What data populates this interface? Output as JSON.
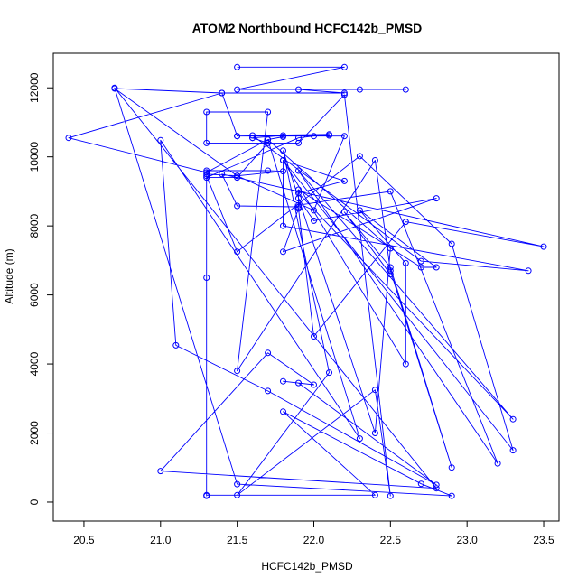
{
  "chart_data": {
    "type": "line",
    "title": "ATOM2 Northbound HCFC142b_PMSD",
    "xlabel": "HCFC142b_PMSD",
    "ylabel": "Altitude (m)",
    "xlim": [
      20.3,
      23.6
    ],
    "ylim": [
      -550,
      13000
    ],
    "x_ticks": [
      20.5,
      21.0,
      21.5,
      22.0,
      22.5,
      23.0,
      23.5
    ],
    "x_tick_labels": [
      "20.5",
      "21.0",
      "21.5",
      "22.0",
      "22.5",
      "23.0",
      "23.5"
    ],
    "y_ticks": [
      0,
      2000,
      4000,
      6000,
      8000,
      10000,
      12000
    ],
    "y_tick_labels": [
      "0",
      "2000",
      "4000",
      "6000",
      "8000",
      "10000",
      "12000"
    ],
    "grid": false,
    "colors": {
      "series": "#0000ff",
      "axis": "#000000",
      "background": "#ffffff"
    },
    "series": [
      {
        "x": [
          21.5,
          22.2,
          21.5,
          22.6,
          22.3,
          21.9,
          22.2,
          21.4,
          20.7,
          21.5,
          21.3,
          21.3,
          21.7,
          21.8,
          21.5,
          22.0,
          22.2,
          21.5,
          22.1,
          22.0,
          21.9,
          21.3,
          21.5,
          21.7,
          21.6,
          21.6,
          21.8,
          21.8,
          21.7,
          21.3,
          20.4,
          21.4,
          21.5,
          22.1,
          21.6,
          22.7,
          23.4,
          21.8,
          21.8,
          22.2,
          21.9,
          23.3,
          21.9,
          23.2,
          22.5,
          21.9,
          21.9,
          22.0,
          22.8,
          21.8,
          21.9,
          22.0,
          22.6,
          23.5,
          21.4,
          21.5,
          21.9,
          21.9,
          22.7,
          22.8,
          22.3,
          22.6,
          22.6,
          21.8,
          23.3,
          22.9,
          22.3,
          21.5,
          21.3,
          21.3,
          21.3,
          21.3,
          22.4,
          21.8,
          22.7,
          22.9,
          21.5,
          20.7,
          22.8,
          21.0,
          21.7,
          22.0,
          21.8,
          21.9,
          22.8,
          21.7,
          21.1,
          21.0,
          22.3,
          21.7,
          22.5,
          22.4,
          21.8,
          22.1,
          21.5,
          22.4,
          22.5,
          22.2,
          21.9,
          21.3,
          21.3,
          21.7,
          21.5,
          22.4,
          22.5,
          22.9,
          22.5,
          22.2,
          22.5
        ],
        "y": [
          12600,
          12600,
          11950,
          11950,
          11950,
          11950,
          11850,
          11850,
          11980,
          9450,
          9500,
          9600,
          9600,
          9580,
          9450,
          8450,
          10600,
          10600,
          10620,
          10600,
          10550,
          9400,
          9400,
          10400,
          10550,
          10550,
          10620,
          10580,
          10500,
          9550,
          10550,
          11850,
          10600,
          10650,
          10620,
          6980,
          6700,
          8000,
          9900,
          9300,
          8950,
          2400,
          9600,
          1120,
          9000,
          8600,
          8800,
          8150,
          8800,
          7250,
          8500,
          4800,
          8120,
          7400,
          9500,
          8580,
          8550,
          9050,
          6800,
          6800,
          8450,
          6920,
          4000,
          9900,
          1500,
          7480,
          10020,
          7250,
          9450,
          6500,
          180,
          200,
          200,
          2620,
          530,
          180,
          520,
          12000,
          400,
          900,
          4320,
          3400,
          3500,
          3450,
          500,
          3220,
          4540,
          10480,
          1840,
          10500,
          7350,
          2000,
          10180,
          3750,
          200,
          3250,
          180,
          11800,
          10400,
          10400,
          11300,
          11300,
          3800,
          9900,
          6700,
          1000,
          6800,
          8400,
          6600
        ]
      }
    ]
  }
}
